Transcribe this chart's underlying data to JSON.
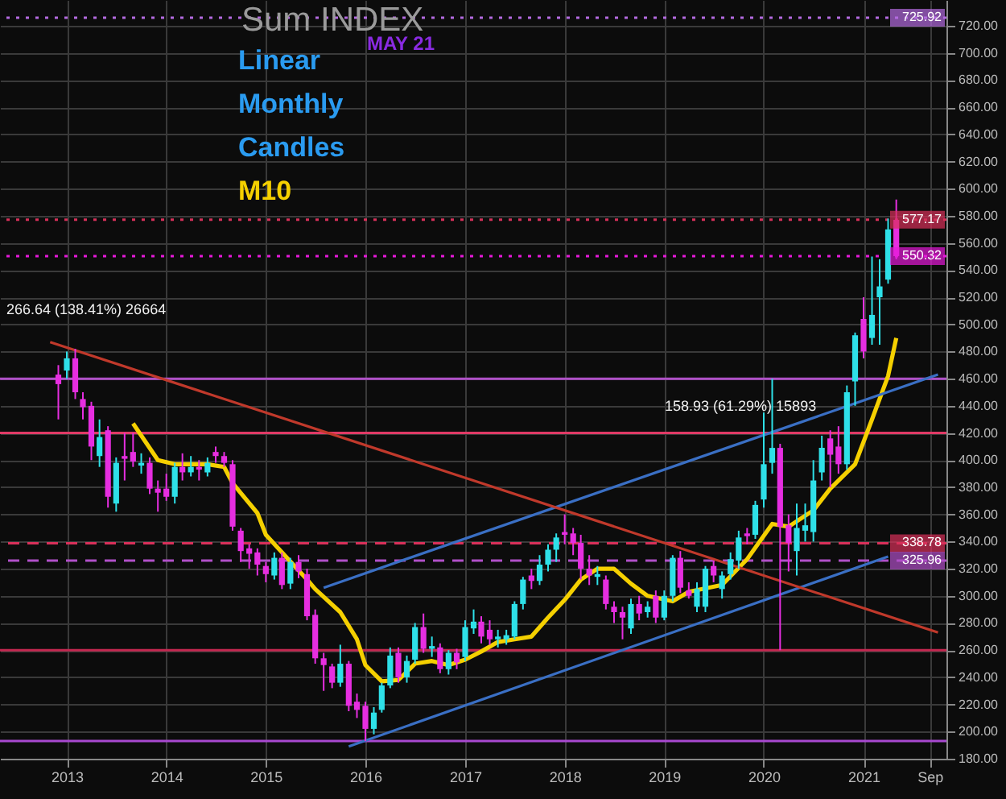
{
  "chart_data": {
    "type": "candlestick",
    "title": "Sum INDEX",
    "subtitle": "MAY 21",
    "annotations": [
      "Linear",
      "Monthly",
      "Candles",
      "266.64 (138.41%) 26664",
      "158.93 (61.29%) 15893"
    ],
    "x": [
      "2012-12",
      "2013-01",
      "2013-02",
      "2013-03",
      "2013-04",
      "2013-05",
      "2013-06",
      "2013-07",
      "2013-08",
      "2013-09",
      "2013-10",
      "2013-11",
      "2013-12",
      "2014-01",
      "2014-02",
      "2014-03",
      "2014-04",
      "2014-05",
      "2014-06",
      "2014-07",
      "2014-08",
      "2014-09",
      "2014-10",
      "2014-11",
      "2014-12",
      "2015-01",
      "2015-02",
      "2015-03",
      "2015-04",
      "2015-05",
      "2015-06",
      "2015-07",
      "2015-08",
      "2015-09",
      "2015-10",
      "2015-11",
      "2015-12",
      "2016-01",
      "2016-02",
      "2016-03",
      "2016-04",
      "2016-05",
      "2016-06",
      "2016-07",
      "2016-08",
      "2016-09",
      "2016-10",
      "2016-11",
      "2016-12",
      "2017-01",
      "2017-02",
      "2017-03",
      "2017-04",
      "2017-05",
      "2017-06",
      "2017-07",
      "2017-08",
      "2017-09",
      "2017-10",
      "2017-11",
      "2017-12",
      "2018-01",
      "2018-02",
      "2018-03",
      "2018-04",
      "2018-05",
      "2018-06",
      "2018-07",
      "2018-08",
      "2018-09",
      "2018-10",
      "2018-11",
      "2018-12",
      "2019-01",
      "2019-02",
      "2019-03",
      "2019-04",
      "2019-05",
      "2019-06",
      "2019-07",
      "2019-08",
      "2019-09",
      "2019-10",
      "2019-11",
      "2019-12",
      "2020-01",
      "2020-02",
      "2020-03",
      "2020-04",
      "2020-05",
      "2020-06",
      "2020-07",
      "2020-08",
      "2020-09",
      "2020-10",
      "2020-11",
      "2020-12",
      "2021-01",
      "2021-02",
      "2021-03",
      "2021-04",
      "2021-05"
    ],
    "ohlc": [
      [
        463,
        470,
        430,
        456
      ],
      [
        466,
        480,
        460,
        475
      ],
      [
        475,
        482,
        445,
        450
      ],
      [
        445,
        450,
        430,
        439
      ],
      [
        440,
        443,
        400,
        410
      ],
      [
        403,
        430,
        395,
        417
      ],
      [
        422,
        425,
        365,
        373
      ],
      [
        368,
        402,
        362,
        398
      ],
      [
        403,
        420,
        385,
        401
      ],
      [
        406,
        420,
        395,
        399
      ],
      [
        396,
        405,
        390,
        398
      ],
      [
        398,
        402,
        375,
        379
      ],
      [
        379,
        385,
        362,
        376
      ],
      [
        379,
        390,
        370,
        373
      ],
      [
        373,
        398,
        368,
        395
      ],
      [
        395,
        405,
        385,
        391
      ],
      [
        391,
        403,
        388,
        395
      ],
      [
        395,
        400,
        385,
        393
      ],
      [
        391,
        402,
        388,
        398
      ],
      [
        406,
        410,
        398,
        403
      ],
      [
        403,
        406,
        395,
        398
      ],
      [
        397,
        400,
        348,
        351
      ],
      [
        348,
        350,
        325,
        333
      ],
      [
        335,
        338,
        320,
        331
      ],
      [
        332,
        335,
        315,
        323
      ],
      [
        322,
        325,
        310,
        316
      ],
      [
        315,
        332,
        312,
        328
      ],
      [
        328,
        332,
        305,
        308
      ],
      [
        309,
        328,
        305,
        325
      ],
      [
        325,
        330,
        313,
        318
      ],
      [
        316,
        320,
        282,
        285
      ],
      [
        286,
        290,
        250,
        254
      ],
      [
        254,
        258,
        230,
        249
      ],
      [
        248,
        250,
        232,
        236
      ],
      [
        236,
        264,
        233,
        250
      ],
      [
        250,
        252,
        215,
        219
      ],
      [
        222,
        228,
        210,
        216
      ],
      [
        219,
        222,
        193,
        202
      ],
      [
        202,
        218,
        198,
        214
      ],
      [
        216,
        236,
        214,
        234
      ],
      [
        234,
        262,
        232,
        256
      ],
      [
        258,
        262,
        236,
        240
      ],
      [
        240,
        256,
        236,
        252
      ],
      [
        253,
        280,
        250,
        277
      ],
      [
        277,
        287,
        258,
        261
      ],
      [
        261,
        270,
        255,
        263
      ],
      [
        262,
        265,
        243,
        246
      ],
      [
        246,
        260,
        242,
        258
      ],
      [
        258,
        261,
        246,
        251
      ],
      [
        255,
        282,
        252,
        277
      ],
      [
        276,
        290,
        272,
        281
      ],
      [
        281,
        285,
        265,
        270
      ],
      [
        275,
        282,
        264,
        268
      ],
      [
        268,
        275,
        262,
        270
      ],
      [
        268,
        275,
        264,
        271
      ],
      [
        270,
        296,
        268,
        294
      ],
      [
        294,
        314,
        290,
        312
      ],
      [
        315,
        320,
        305,
        311
      ],
      [
        311,
        330,
        308,
        323
      ],
      [
        323,
        338,
        318,
        334
      ],
      [
        334,
        346,
        325,
        343
      ],
      [
        347,
        360,
        338,
        345
      ],
      [
        346,
        350,
        330,
        339
      ],
      [
        339,
        345,
        312,
        320
      ],
      [
        320,
        330,
        308,
        315
      ],
      [
        314,
        322,
        308,
        316
      ],
      [
        312,
        315,
        290,
        294
      ],
      [
        292,
        296,
        280,
        288
      ],
      [
        288,
        292,
        268,
        284
      ],
      [
        276,
        298,
        272,
        294
      ],
      [
        294,
        300,
        282,
        287
      ],
      [
        288,
        296,
        284,
        292
      ],
      [
        300,
        304,
        280,
        284
      ],
      [
        284,
        304,
        282,
        300
      ],
      [
        300,
        330,
        296,
        328
      ],
      [
        328,
        333,
        302,
        306
      ],
      [
        304,
        310,
        298,
        300
      ],
      [
        292,
        310,
        288,
        305
      ],
      [
        292,
        322,
        288,
        320
      ],
      [
        322,
        326,
        310,
        315
      ],
      [
        305,
        318,
        298,
        315
      ],
      [
        316,
        332,
        312,
        327
      ],
      [
        326,
        348,
        320,
        343
      ],
      [
        346,
        350,
        338,
        344
      ],
      [
        345,
        370,
        342,
        367
      ],
      [
        371,
        435,
        365,
        397
      ],
      [
        398,
        460,
        390,
        409
      ],
      [
        409,
        412,
        260,
        351
      ],
      [
        352,
        360,
        318,
        339
      ],
      [
        333,
        368,
        315,
        350
      ],
      [
        348,
        368,
        340,
        352
      ],
      [
        347,
        400,
        340,
        385
      ],
      [
        391,
        418,
        385,
        409
      ],
      [
        416,
        422,
        380,
        404
      ],
      [
        410,
        425,
        390,
        397
      ],
      [
        397,
        455,
        393,
        450
      ],
      [
        458,
        494,
        440,
        492
      ],
      [
        504,
        520,
        475,
        480
      ],
      [
        490,
        550,
        485,
        507
      ],
      [
        520,
        548,
        485,
        528
      ],
      [
        533,
        578,
        530,
        570
      ],
      [
        577,
        592,
        548,
        550.32
      ]
    ],
    "colors": [
      "#e62ee0",
      "#2ee0e8",
      "#e62ee0",
      "#e62ee0",
      "#e62ee0",
      "#2ee0e8",
      "#e62ee0",
      "#2ee0e8",
      "#e62ee0",
      "#e62ee0",
      "#2ee0e8",
      "#e62ee0",
      "#e62ee0",
      "#e62ee0",
      "#2ee0e8",
      "#e62ee0",
      "#2ee0e8",
      "#e62ee0",
      "#2ee0e8",
      "#e62ee0",
      "#e62ee0",
      "#e62ee0",
      "#e62ee0",
      "#e62ee0",
      "#e62ee0",
      "#e62ee0",
      "#2ee0e8",
      "#e62ee0",
      "#2ee0e8",
      "#e62ee0",
      "#e62ee0",
      "#e62ee0",
      "#e62ee0",
      "#e62ee0",
      "#2ee0e8",
      "#e62ee0",
      "#e62ee0",
      "#e62ee0",
      "#2ee0e8",
      "#2ee0e8",
      "#2ee0e8",
      "#e62ee0",
      "#2ee0e8",
      "#2ee0e8",
      "#e62ee0",
      "#2ee0e8",
      "#e62ee0",
      "#2ee0e8",
      "#e62ee0",
      "#2ee0e8",
      "#2ee0e8",
      "#e62ee0",
      "#e62ee0",
      "#2ee0e8",
      "#2ee0e8",
      "#2ee0e8",
      "#2ee0e8",
      "#e62ee0",
      "#2ee0e8",
      "#2ee0e8",
      "#2ee0e8",
      "#e62ee0",
      "#e62ee0",
      "#e62ee0",
      "#e62ee0",
      "#2ee0e8",
      "#e62ee0",
      "#e62ee0",
      "#e62ee0",
      "#2ee0e8",
      "#e62ee0",
      "#2ee0e8",
      "#e62ee0",
      "#2ee0e8",
      "#2ee0e8",
      "#e62ee0",
      "#e62ee0",
      "#2ee0e8",
      "#2ee0e8",
      "#e62ee0",
      "#2ee0e8",
      "#2ee0e8",
      "#2ee0e8",
      "#e62ee0",
      "#2ee0e8",
      "#2ee0e8",
      "#2ee0e8",
      "#e62ee0",
      "#e62ee0",
      "#2ee0e8",
      "#2ee0e8",
      "#2ee0e8",
      "#2ee0e8",
      "#e62ee0",
      "#e62ee0",
      "#2ee0e8",
      "#2ee0e8",
      "#e62ee0",
      "#2ee0e8",
      "#2ee0e8",
      "#2ee0e8",
      "#e62ee0"
    ],
    "series": [
      {
        "name": "M10",
        "type": "line",
        "color": "#f5d000",
        "x": [
          "2013-09",
          "2013-12",
          "2014-02",
          "2014-05",
          "2014-06",
          "2014-08",
          "2014-09",
          "2014-12",
          "2015-01",
          "2015-03",
          "2015-06",
          "2015-07",
          "2015-10",
          "2015-12",
          "2016-01",
          "2016-03",
          "2016-05",
          "2016-07",
          "2016-09",
          "2016-11",
          "2017-01",
          "2017-03",
          "2017-05",
          "2017-07",
          "2017-09",
          "2017-11",
          "2018-01",
          "2018-03",
          "2018-05",
          "2018-07",
          "2018-09",
          "2018-11",
          "2019-02",
          "2019-04",
          "2019-08",
          "2019-11",
          "2020-02",
          "2020-04",
          "2020-07",
          "2020-09",
          "2020-12",
          "2021-02",
          "2021-04",
          "2021-05"
        ],
        "values": [
          427,
          400,
          397,
          397,
          397,
          395,
          383,
          361,
          345,
          332,
          312,
          305,
          288,
          268,
          249,
          237,
          238,
          250,
          252,
          249,
          253,
          259,
          266,
          268,
          270,
          284,
          297,
          312,
          320,
          320,
          309,
          300,
          296,
          303,
          308,
          327,
          353,
          351,
          363,
          379,
          397,
          430,
          462,
          490
        ]
      },
      {
        "type": "line",
        "color": "#3a6fc4",
        "x": [
          "2015-08",
          "2021-10"
        ],
        "values": [
          306,
          463
        ]
      },
      {
        "type": "line",
        "color": "#3a6fc4",
        "x": [
          "2015-11",
          "2021-04"
        ],
        "values": [
          189,
          329
        ]
      },
      {
        "type": "line",
        "color": "#c0392b",
        "x": [
          "2012-11",
          "2021-10"
        ],
        "values": [
          487,
          273
        ]
      }
    ],
    "xlim": [
      "2012-05",
      "2021-11"
    ],
    "ylim": [
      180,
      739
    ],
    "xticks": [
      "2013",
      "2014",
      "2015",
      "2016",
      "2017",
      "2018",
      "2019",
      "2020",
      "2021",
      {
        "value": "2021-09",
        "label": "Sep"
      }
    ],
    "yticks": [
      {
        "value": 180,
        "label": "180.00"
      },
      {
        "value": 200,
        "label": "200.00"
      },
      {
        "value": 220,
        "label": "220.00"
      },
      {
        "value": 240,
        "label": "240.00"
      },
      {
        "value": 260,
        "label": "260.00"
      },
      {
        "value": 280,
        "label": "280.00"
      },
      {
        "value": 300,
        "label": "300.00"
      },
      {
        "value": 320,
        "label": "320.00"
      },
      {
        "value": 340,
        "label": "340.00"
      },
      {
        "value": 360,
        "label": "360.00"
      },
      {
        "value": 380,
        "label": "380.00"
      },
      {
        "value": 400,
        "label": "400.00"
      },
      {
        "value": 420,
        "label": "420.00"
      },
      {
        "value": 440,
        "label": "440.00"
      },
      {
        "value": 460,
        "label": "460.00"
      },
      {
        "value": 480,
        "label": "480.00"
      },
      {
        "value": 500,
        "label": "500.00"
      },
      {
        "value": 520,
        "label": "520.00"
      },
      {
        "value": 540,
        "label": "540.00"
      },
      {
        "value": 560,
        "label": "560.00"
      },
      {
        "value": 580,
        "label": "580.00"
      },
      {
        "value": 600,
        "label": "600.00"
      },
      {
        "value": 620,
        "label": "620.00"
      },
      {
        "value": 640,
        "label": "640.00"
      },
      {
        "value": 660,
        "label": "660.00"
      },
      {
        "value": 680,
        "label": "680.00"
      },
      {
        "value": 700,
        "label": "700.00"
      },
      {
        "value": 720,
        "label": "720.00"
      }
    ],
    "grid": true,
    "ref_lines": [
      {
        "axis": "y",
        "value": 725.92,
        "label": "725.92",
        "color": "#b36be0",
        "line_style": "dotted"
      },
      {
        "axis": "y",
        "value": 577.17,
        "label": "577.17",
        "color": "#d8305a",
        "line_style": "dotted"
      },
      {
        "axis": "y",
        "value": 550.32,
        "label": "550.32",
        "color": "#e619d9",
        "line_style": "dotted"
      },
      {
        "axis": "y",
        "value": 338.78,
        "label": "338.78",
        "color": "#d8305a",
        "line_style": "dashed"
      },
      {
        "axis": "y",
        "value": 325.96,
        "label": "325.96",
        "color": "#b050c8",
        "line_style": "dashed"
      },
      {
        "axis": "y",
        "value": 460,
        "color": "#b050c8",
        "line_style": "solid"
      },
      {
        "axis": "y",
        "value": 420,
        "color": "#e03a66",
        "line_style": "solid"
      },
      {
        "axis": "y",
        "value": 260,
        "color": "#c42850",
        "line_style": "solid"
      },
      {
        "axis": "y",
        "value": 193,
        "color": "#a848d0",
        "line_style": "solid"
      }
    ]
  }
}
